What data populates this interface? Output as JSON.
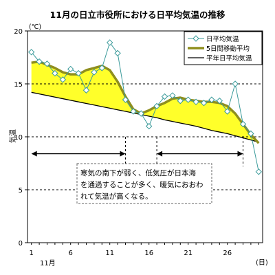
{
  "chart_data": {
    "type": "line",
    "title": "11月の日立市役所における日平均気温の推移",
    "ylabel": "気温",
    "yunit": "(℃)",
    "xunit": "(日)",
    "month_label": "11月",
    "ylim": [
      0,
      20
    ],
    "yticks": [
      0,
      5,
      10,
      15,
      20
    ],
    "xlim": [
      0.5,
      30.5
    ],
    "xticks": [
      1,
      6,
      11,
      16,
      21,
      26
    ],
    "gridlines_y": [
      5,
      10,
      15
    ],
    "grid_style": "dashed",
    "legend": {
      "position": "top-right",
      "items": [
        "日平均気温",
        "5日間移動平均",
        "平年日平均気温"
      ]
    },
    "series": [
      {
        "name": "日平均気温",
        "color": "#3a9a9a",
        "marker": "diamond",
        "x": [
          1,
          2,
          3,
          4,
          5,
          6,
          7,
          8,
          9,
          10,
          11,
          12,
          13,
          14,
          15,
          16,
          17,
          18,
          19,
          20,
          21,
          22,
          23,
          24,
          25,
          26,
          27,
          28,
          29,
          30
        ],
        "values": [
          18.0,
          17.1,
          16.9,
          16.0,
          15.4,
          16.4,
          16.0,
          14.4,
          16.1,
          16.5,
          18.9,
          17.9,
          13.5,
          12.4,
          12.2,
          11.0,
          12.9,
          13.8,
          13.9,
          13.4,
          13.5,
          13.3,
          13.2,
          13.5,
          13.4,
          12.4,
          15.0,
          11.2,
          10.3,
          6.7
        ]
      },
      {
        "name": "5日間移動平均",
        "color": "#8f8f1e",
        "x": [
          1,
          2,
          3,
          4,
          5,
          6,
          7,
          8,
          9,
          10,
          11,
          12,
          13,
          14,
          15,
          16,
          17,
          18,
          19,
          20,
          21,
          22,
          23,
          24,
          25,
          26,
          27,
          28,
          29,
          30
        ],
        "values": [
          17.0,
          17.1,
          16.8,
          16.5,
          16.1,
          15.9,
          15.9,
          16.3,
          16.5,
          16.7,
          16.3,
          15.2,
          13.8,
          12.6,
          12.2,
          12.5,
          12.9,
          13.2,
          13.6,
          13.7,
          13.5,
          13.4,
          13.3,
          13.3,
          13.2,
          12.9,
          12.2,
          11.2,
          10.2,
          9.4
        ]
      },
      {
        "name": "平年日平均気温",
        "color": "#000000",
        "x": [
          1,
          2,
          3,
          4,
          5,
          6,
          7,
          8,
          9,
          10,
          11,
          12,
          13,
          14,
          15,
          16,
          17,
          18,
          19,
          20,
          21,
          22,
          23,
          24,
          25,
          26,
          27,
          28,
          29,
          30
        ],
        "values": [
          14.2,
          14.05,
          13.9,
          13.75,
          13.6,
          13.45,
          13.3,
          13.15,
          13.0,
          12.85,
          12.7,
          12.55,
          12.4,
          12.25,
          12.1,
          11.95,
          11.8,
          11.6,
          11.45,
          11.3,
          11.15,
          11.0,
          10.8,
          10.6,
          10.45,
          10.3,
          10.1,
          9.9,
          9.7,
          9.5
        ]
      }
    ],
    "fill_between": {
      "upper": "5日間移動平均",
      "lower": "平年日平均気温",
      "color": "#ffff2a"
    },
    "annotation": {
      "lines": [
        "寒気の南下が弱く、低気圧が日本海",
        "を通過することが多く、暖気におおわ",
        "れて気温が高くなる。"
      ],
      "arrows": [
        {
          "from": 1,
          "to": 13,
          "y": 8.4
        },
        {
          "from": 17,
          "to": 28,
          "y": 8.4
        }
      ],
      "markers_x": [
        13,
        17,
        28
      ]
    }
  }
}
